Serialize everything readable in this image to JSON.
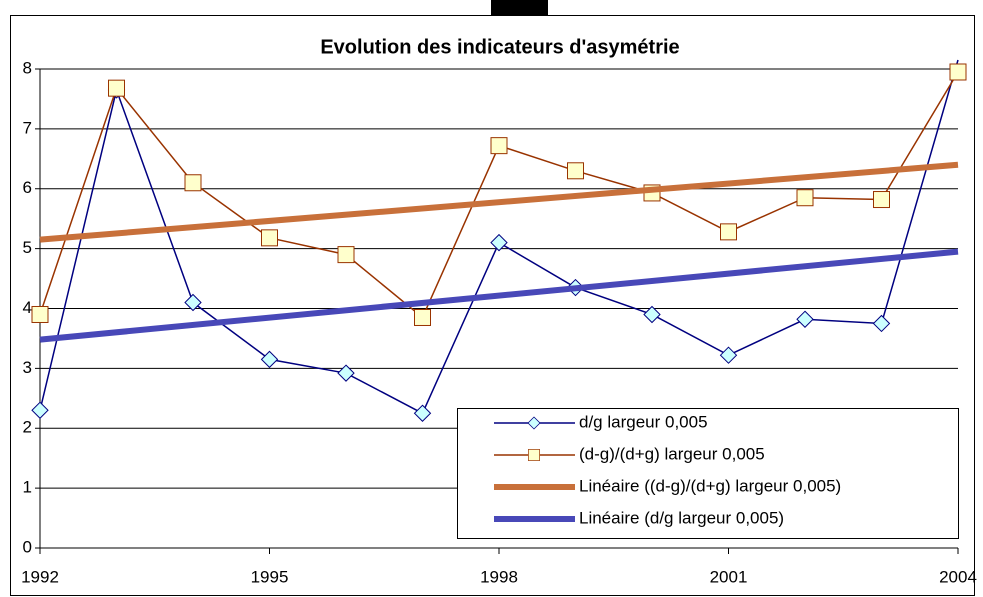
{
  "chart_data": {
    "type": "line",
    "title": "Evolution des indicateurs d'asymétrie",
    "x": [
      1992,
      1993,
      1994,
      1995,
      1996,
      1997,
      1998,
      1999,
      2000,
      2001,
      2002,
      2003,
      2004
    ],
    "xlim": [
      1992,
      2004
    ],
    "xticks": [
      1992,
      1995,
      1998,
      2001,
      2004
    ],
    "ylim": [
      0,
      8
    ],
    "yticks": [
      0,
      1,
      2,
      3,
      4,
      5,
      6,
      7,
      8
    ],
    "grid": true,
    "series": [
      {
        "name": "d/g largeur 0,005",
        "color": "#000080",
        "marker": "diamond",
        "values": [
          2.3,
          7.65,
          4.1,
          3.15,
          2.92,
          2.25,
          5.1,
          4.35,
          3.9,
          3.22,
          3.82,
          3.75,
          8.15
        ]
      },
      {
        "name": "(d-g)/(d+g) largeur 0,005",
        "color": "#993300",
        "marker": "square",
        "values": [
          3.9,
          7.68,
          6.1,
          5.18,
          4.9,
          3.85,
          6.72,
          6.3,
          5.93,
          5.28,
          5.85,
          5.82,
          7.95
        ]
      },
      {
        "name": "Linéaire ((d-g)/(d+g) largeur 0,005)",
        "color": "#c8703a",
        "trend": true,
        "x": [
          1992,
          2004
        ],
        "values": [
          5.15,
          6.4
        ]
      },
      {
        "name": "Linéaire (d/g largeur 0,005)",
        "color": "#4848b8",
        "trend": true,
        "x": [
          1992,
          2004
        ],
        "values": [
          3.48,
          4.95
        ]
      }
    ]
  }
}
